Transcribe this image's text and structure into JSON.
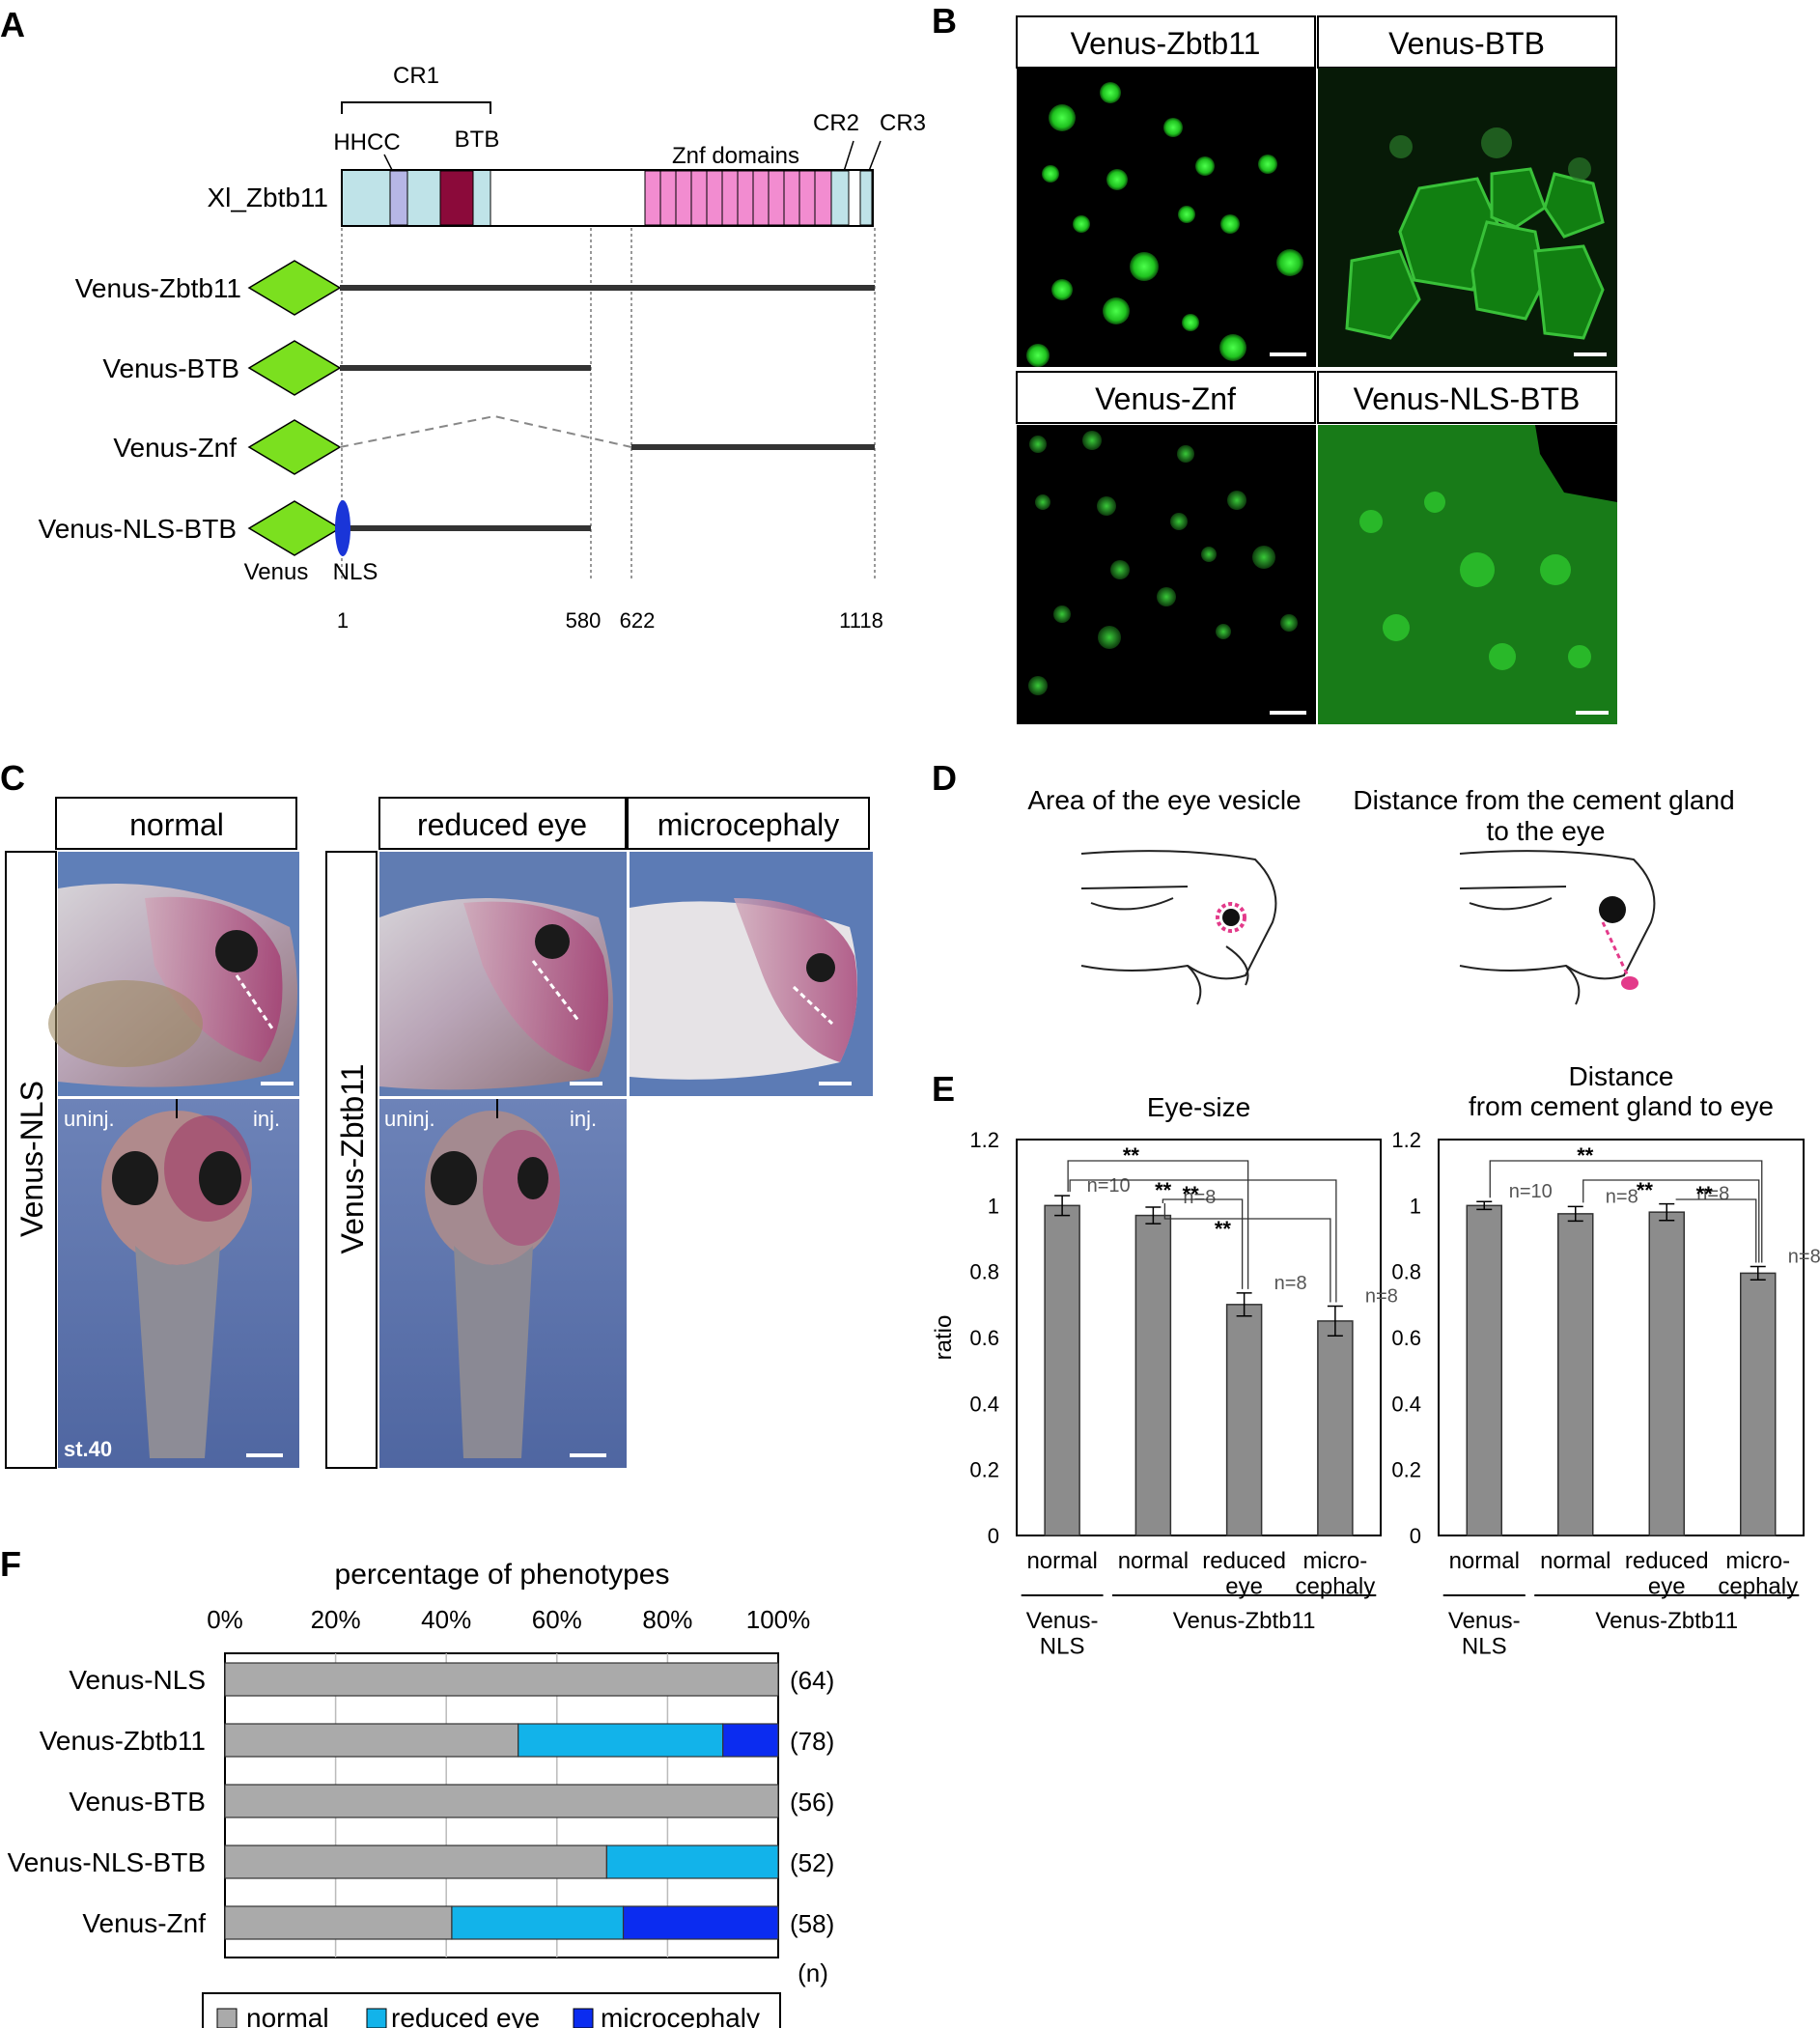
{
  "panels": {
    "A": {
      "letter": "A",
      "cr1": "CR1",
      "hhcc": "HHCC",
      "btb": "BTB",
      "znf": "Znf domains",
      "cr2": "CR2",
      "cr3": "CR3",
      "protein": "Xl_Zbtb11",
      "constructs": [
        "Venus-Zbtb11",
        "Venus-BTB",
        "Venus-Znf",
        "Venus-NLS-BTB"
      ],
      "venus_label": "Venus",
      "nls_label": "NLS",
      "positions": [
        "1",
        "580",
        "622",
        "1118"
      ]
    },
    "B": {
      "letter": "B",
      "images": [
        "Venus-Zbtb11",
        "Venus-BTB",
        "Venus-Znf",
        "Venus-NLS-BTB"
      ]
    },
    "C": {
      "letter": "C",
      "normal": "normal",
      "reduced": "reduced eye",
      "micro": "microcephaly",
      "row1": "Venus-NLS",
      "row2": "Venus-Zbtb11",
      "uninj": "uninj.",
      "inj": "inj.",
      "stage": "st.40"
    },
    "D": {
      "letter": "D",
      "left_title": "Area of the eye vesicle",
      "right_title_1": "Distance from the cement gland",
      "right_title_2": "to the eye"
    },
    "E": {
      "letter": "E"
    },
    "F": {
      "letter": "F",
      "legend": [
        "normal",
        "reduced eye",
        "microcephaly"
      ],
      "n_label": "(n)"
    }
  },
  "colors": {
    "domain_cyan": "#bfe3e8",
    "hhcc": "#b6b6e6",
    "btb": "#8b0a3a",
    "znf": "#f28cd0",
    "venus": "#7be01f",
    "nls": "#1a35d8",
    "bar_gray": "#8c8c8c",
    "normal": "#aaaaaa",
    "reduced": "#12b3ea",
    "micro": "#0b2cf0"
  },
  "chart_data": [
    {
      "type": "bar",
      "title": "Eye-size",
      "ylabel": "ratio",
      "ylim": [
        0,
        1.2
      ],
      "yticks": [
        "0",
        "0.2",
        "0.4",
        "0.6",
        "0.8",
        "1",
        "1.2"
      ],
      "categories": [
        "normal",
        "normal",
        "reduced\neye",
        "micro-\ncephaly"
      ],
      "groups": [
        {
          "label": "Venus-\nNLS",
          "span": [
            0,
            0
          ]
        },
        {
          "label": "Venus-Zbtb11",
          "span": [
            1,
            3
          ]
        }
      ],
      "values": [
        1.0,
        0.97,
        0.7,
        0.65
      ],
      "errors": [
        0.03,
        0.025,
        0.035,
        0.045
      ],
      "n_labels": [
        "n=10",
        "n=8",
        "n=8",
        "n=8"
      ],
      "significance": [
        {
          "from": 0,
          "to": 2,
          "label": "**"
        },
        {
          "from": 0,
          "to": 3,
          "label": "**"
        },
        {
          "from": 1,
          "to": 2,
          "label": "**"
        },
        {
          "from": 1,
          "to": 3,
          "label": "**"
        }
      ]
    },
    {
      "type": "bar",
      "title": "Distance\nfrom cement gland to eye",
      "ylabel": "",
      "ylim": [
        0,
        1.2
      ],
      "yticks": [
        "0",
        "0.2",
        "0.4",
        "0.6",
        "0.8",
        "1",
        "1.2"
      ],
      "categories": [
        "normal",
        "normal",
        "reduced\neye",
        "micro-\ncephaly"
      ],
      "groups": [
        {
          "label": "Venus-\nNLS",
          "span": [
            0,
            0
          ]
        },
        {
          "label": "Venus-Zbtb11",
          "span": [
            1,
            3
          ]
        }
      ],
      "values": [
        1.0,
        0.975,
        0.98,
        0.795
      ],
      "errors": [
        0.012,
        0.022,
        0.025,
        0.02
      ],
      "n_labels": [
        "n=10",
        "n=8",
        "n=8",
        "n=8"
      ],
      "significance": [
        {
          "from": 0,
          "to": 3,
          "label": "**"
        },
        {
          "from": 1,
          "to": 3,
          "label": "**"
        },
        {
          "from": 2,
          "to": 3,
          "label": "**"
        }
      ]
    },
    {
      "type": "bar",
      "orientation": "horizontal-stacked",
      "title": "percentage of phenotypes",
      "xticks": [
        "0%",
        "20%",
        "40%",
        "60%",
        "80%",
        "100%"
      ],
      "xlim": [
        0,
        100
      ],
      "categories": [
        "Venus-NLS",
        "Venus-Zbtb11",
        "Venus-BTB",
        "Venus-NLS-BTB",
        "Venus-Znf"
      ],
      "n": [
        "(64)",
        "(78)",
        "(56)",
        "(52)",
        "(58)"
      ],
      "series": [
        {
          "name": "normal",
          "values": [
            100,
            53,
            100,
            69,
            41
          ]
        },
        {
          "name": "reduced eye",
          "values": [
            0,
            37,
            0,
            31,
            31
          ]
        },
        {
          "name": "microcephaly",
          "values": [
            0,
            10,
            0,
            0,
            28
          ]
        }
      ]
    }
  ]
}
